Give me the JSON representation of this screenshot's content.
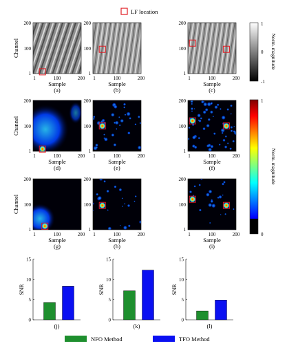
{
  "legend_top": {
    "label": "LF location",
    "marker_color": "#e11b22"
  },
  "colorbars": [
    {
      "label": "Norm. magnitude",
      "ticks": [
        "1",
        "0",
        "-1"
      ],
      "colormap": "gray"
    },
    {
      "label": "Norm. magnitude",
      "ticks": [
        "1",
        "0"
      ],
      "colormap": "jet"
    }
  ],
  "panels": [
    {
      "id": "a",
      "caption": "(a)",
      "kind": "raw",
      "xlabel": "Sample",
      "ylabel": "Channel",
      "xticks": [
        "1",
        "100",
        "200"
      ],
      "yticks": [
        "200",
        "100",
        "1"
      ],
      "lf": [
        [
          40,
          8
        ]
      ]
    },
    {
      "id": "b",
      "caption": "(b)",
      "kind": "raw",
      "xlabel": "Sample",
      "ylabel": "",
      "xticks": [
        "1",
        "100",
        "200"
      ],
      "yticks": [
        "200",
        "100",
        "1"
      ],
      "lf": [
        [
          40,
          96
        ]
      ]
    },
    {
      "id": "c",
      "caption": "(c)",
      "kind": "raw",
      "xlabel": "Sample",
      "ylabel": "",
      "xticks": [
        "1",
        "100",
        "200"
      ],
      "yticks": [
        "200",
        "100",
        "1"
      ],
      "lf": [
        [
          20,
          120
        ],
        [
          160,
          96
        ]
      ]
    },
    {
      "id": "d",
      "caption": "(d)",
      "kind": "nfo-map",
      "xlabel": "Sample",
      "ylabel": "Channel",
      "xticks": [
        "1",
        "100",
        "200"
      ],
      "yticks": [
        "200",
        "100",
        "1"
      ],
      "lf": [
        [
          40,
          10
        ]
      ]
    },
    {
      "id": "e",
      "caption": "(e)",
      "kind": "tfo-map",
      "xlabel": "Sample",
      "ylabel": "",
      "xticks": [
        "1",
        "100",
        "200"
      ],
      "yticks": [
        "200",
        "100",
        "1"
      ],
      "lf": [
        [
          40,
          100
        ]
      ]
    },
    {
      "id": "f",
      "caption": "(f)",
      "kind": "tfo-map",
      "xlabel": "Sample",
      "ylabel": "",
      "xticks": [
        "1",
        "100",
        "200"
      ],
      "yticks": [
        "200",
        "100",
        "1"
      ],
      "lf": [
        [
          20,
          120
        ],
        [
          160,
          100
        ]
      ]
    },
    {
      "id": "g",
      "caption": "(g)",
      "kind": "nfo-map",
      "xlabel": "Sample",
      "ylabel": "Channel",
      "xticks": [
        "1",
        "100",
        "200"
      ],
      "yticks": [
        "200",
        "100",
        "1"
      ],
      "lf": [
        [
          50,
          15
        ]
      ]
    },
    {
      "id": "h",
      "caption": "(h)",
      "kind": "tfo-map",
      "xlabel": "Sample",
      "ylabel": "",
      "xticks": [
        "1",
        "100",
        "200"
      ],
      "yticks": [
        "200",
        "100",
        "1"
      ],
      "lf": [
        [
          40,
          96
        ]
      ]
    },
    {
      "id": "i",
      "caption": "(i)",
      "kind": "tfo-map",
      "xlabel": "Sample",
      "ylabel": "",
      "xticks": [
        "1",
        "100",
        "200"
      ],
      "yticks": [
        "200",
        "100",
        "1"
      ],
      "lf": [
        [
          20,
          120
        ],
        [
          160,
          96
        ]
      ]
    }
  ],
  "chart_data": [
    {
      "type": "bar",
      "caption": "(j)",
      "ylabel": "SNR",
      "categories": [
        "NFO Method",
        "TFO Method"
      ],
      "values": [
        4.3,
        8.3
      ],
      "ylim": [
        0,
        15
      ],
      "yticks": [
        "0",
        "5",
        "10",
        "15"
      ]
    },
    {
      "type": "bar",
      "caption": "(k)",
      "ylabel": "SNR",
      "categories": [
        "NFO Method",
        "TFO Method"
      ],
      "values": [
        7.2,
        12.3
      ],
      "ylim": [
        0,
        15
      ],
      "yticks": [
        "0",
        "5",
        "10",
        "15"
      ]
    },
    {
      "type": "bar",
      "caption": "(l)",
      "ylabel": "SNR",
      "categories": [
        "NFO Method",
        "TFO Method"
      ],
      "values": [
        2.2,
        4.9
      ],
      "ylim": [
        0,
        15
      ],
      "yticks": [
        "0",
        "5",
        "10",
        "15"
      ]
    }
  ],
  "legend_bottom": [
    {
      "label": "NFO Method",
      "color": "#1e8f2e"
    },
    {
      "label": "TFO Method",
      "color": "#0a10f2"
    }
  ]
}
